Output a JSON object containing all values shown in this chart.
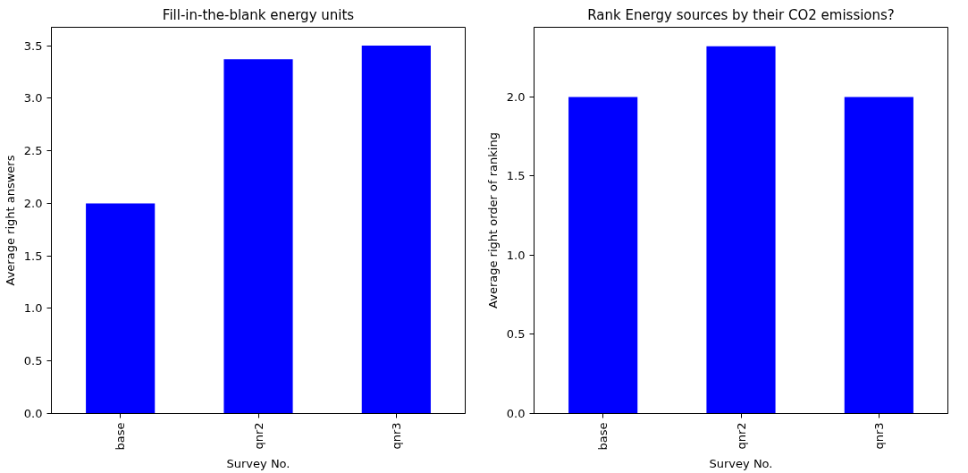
{
  "chart_data": [
    {
      "type": "bar",
      "title": "Fill-in-the-blank energy units",
      "xlabel": "Survey No.",
      "ylabel": "Average right answers",
      "categories": [
        "base",
        "qnr2",
        "qnr3"
      ],
      "values": [
        2.0,
        3.37,
        3.5
      ],
      "color": "#0000ff",
      "ylim": [
        0,
        3.675
      ],
      "yticks": [
        {
          "value": 0,
          "label": "0.0"
        },
        {
          "value": 0.5,
          "label": "0.5"
        },
        {
          "value": 1,
          "label": "1.0"
        },
        {
          "value": 1.5,
          "label": "1.5"
        },
        {
          "value": 2,
          "label": "2.0"
        },
        {
          "value": 2.5,
          "label": "2.5"
        },
        {
          "value": 3,
          "label": "3.0"
        },
        {
          "value": 3.5,
          "label": "3.5"
        }
      ],
      "grid": false
    },
    {
      "type": "bar",
      "title": "Rank Energy sources by their CO2 emissions?",
      "xlabel": "Survey No.",
      "ylabel": "Average right order of ranking",
      "categories": [
        "base",
        "qnr2",
        "qnr3"
      ],
      "values": [
        2.0,
        2.32,
        2.0
      ],
      "color": "#0000ff",
      "ylim": [
        0,
        2.44
      ],
      "yticks": [
        {
          "value": 0,
          "label": "0.0"
        },
        {
          "value": 0.5,
          "label": "0.5"
        },
        {
          "value": 1,
          "label": "1.0"
        },
        {
          "value": 1.5,
          "label": "1.5"
        },
        {
          "value": 2,
          "label": "2.0"
        }
      ],
      "grid": false
    }
  ]
}
